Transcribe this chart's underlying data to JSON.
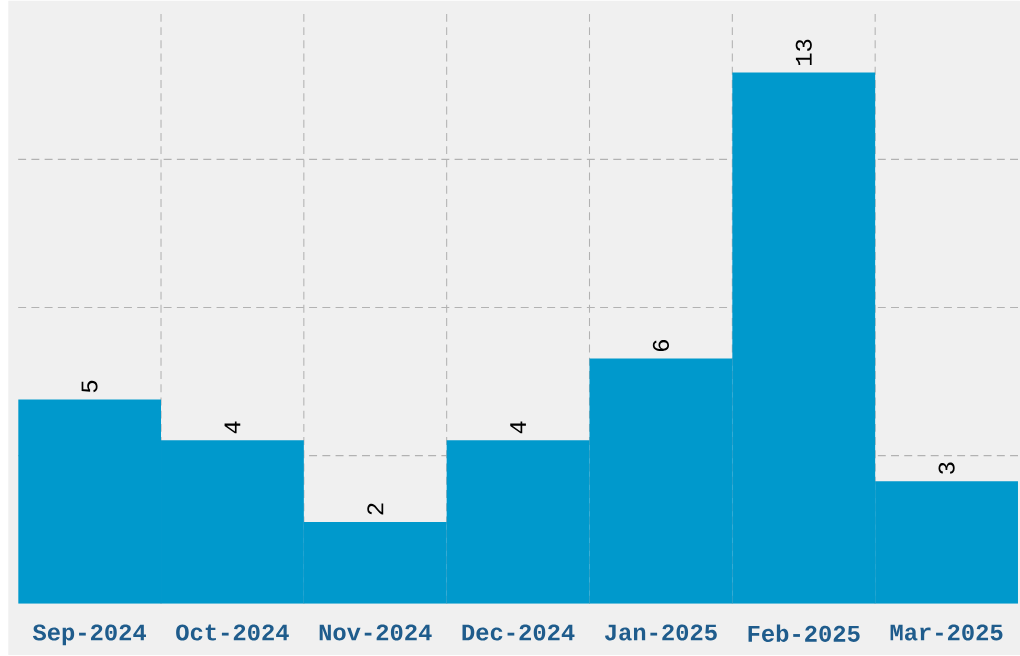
{
  "chart_data": {
    "type": "bar",
    "categories": [
      "Sep-2024",
      "Oct-2024",
      "Nov-2024",
      "Dec-2024",
      "Jan-2025",
      "Feb-2025",
      "Mar-2025"
    ],
    "values": [
      5,
      4,
      2,
      4,
      6,
      13,
      3
    ],
    "color": "#0099cc",
    "data_labels": true,
    "grid": true,
    "ylim": [
      0,
      14.5
    ],
    "yticks": [
      {
        "value": 3.625,
        "label": null
      },
      {
        "value": 7.25,
        "label": null
      },
      {
        "value": 10.875,
        "label": null
      }
    ],
    "tick_labels": "x"
  }
}
